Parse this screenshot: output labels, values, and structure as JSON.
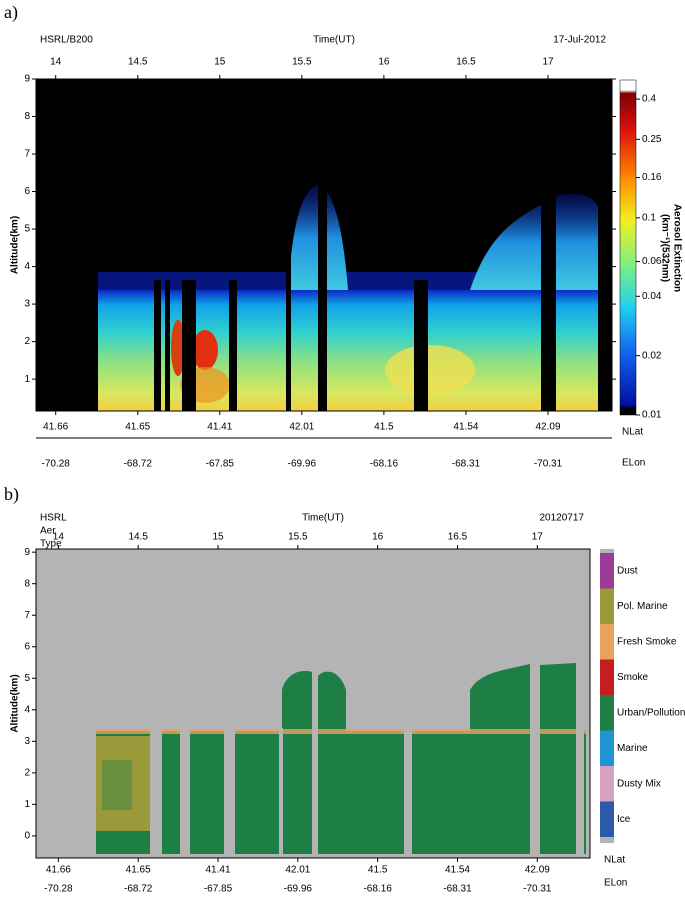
{
  "panel_labels": [
    "a)",
    "b)"
  ],
  "chart_data": [
    {
      "type": "heatmap",
      "title_lines": [
        "HSRL/B200"
      ],
      "xlabel": "Time(UT)",
      "date": "17-Jul-2012",
      "xlim": [
        13.88,
        17.39
      ],
      "xticks": [
        14,
        14.5,
        15,
        15.5,
        16,
        16.5,
        17
      ],
      "ylabel": "Altitude(km)",
      "ylim": [
        0.15,
        9
      ],
      "yticks": [
        1,
        2,
        3,
        4,
        5,
        6,
        7,
        8,
        9
      ],
      "nav": {
        "nlat_label": "NLat",
        "nlat": [
          41.66,
          41.65,
          41.41,
          42.01,
          41.5,
          41.54,
          42.09
        ],
        "elon_label": "ELon",
        "elon": [
          -70.28,
          -68.72,
          -67.85,
          -69.96,
          -68.16,
          -68.31,
          -70.31
        ]
      },
      "colorbar": {
        "label_lines": [
          "Aerosol Extinction",
          "(km⁻¹)(532nm)"
        ],
        "scale": "log",
        "clim": [
          0.01,
          0.5
        ],
        "ticks": [
          0.4,
          0.25,
          0.16,
          0.1,
          0.06,
          0.04,
          0.02,
          0.01
        ]
      }
    },
    {
      "type": "categorical",
      "title_lines": [
        "HSRL",
        "Aer",
        "Type"
      ],
      "xlabel": "Time(UT)",
      "date": "20120717",
      "xlim": [
        13.86,
        17.33
      ],
      "xticks": [
        14,
        14.5,
        15,
        15.5,
        16,
        16.5,
        17
      ],
      "ylabel": "Altitude(km)",
      "ylim": [
        -0.7,
        9.1
      ],
      "yticks": [
        0,
        1,
        2,
        3,
        4,
        5,
        6,
        7,
        8,
        9
      ],
      "nav": {
        "nlat_label": "NLat",
        "nlat": [
          41.66,
          41.65,
          41.41,
          42.01,
          41.5,
          41.54,
          42.09
        ],
        "elon_label": "ELon",
        "elon": [
          -70.28,
          -68.72,
          -67.85,
          -69.96,
          -68.16,
          -68.31,
          -70.31
        ]
      },
      "legend": [
        {
          "name": "Dust",
          "color": "#9c3c96"
        },
        {
          "name": "Pol. Marine",
          "color": "#9a9a3a"
        },
        {
          "name": "Fresh Smoke",
          "color": "#e9a25c"
        },
        {
          "name": "Smoke",
          "color": "#c41e1e"
        },
        {
          "name": "Urban/Pollution",
          "color": "#1e7f46"
        },
        {
          "name": "Marine",
          "color": "#1f95d3"
        },
        {
          "name": "Dusty Mix",
          "color": "#d7a1c2"
        },
        {
          "name": "Ice",
          "color": "#2b5aa8"
        }
      ]
    }
  ]
}
